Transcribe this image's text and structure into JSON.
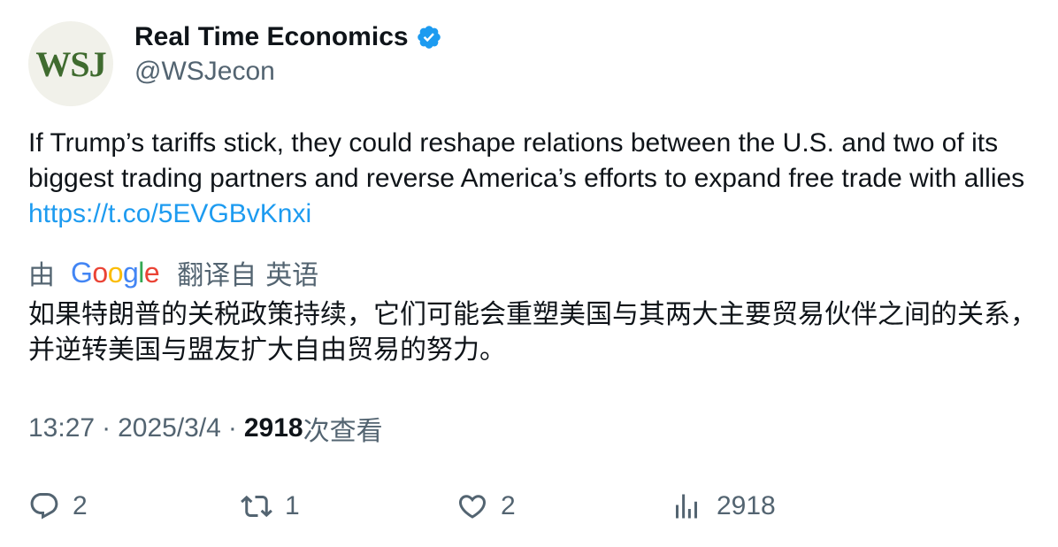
{
  "account": {
    "avatar_text": "WSJ",
    "name": "Real Time Economics",
    "handle": "@WSJecon"
  },
  "tweet": {
    "text": "If Trump’s tariffs stick, they could reshape relations between the U.S. and two of its biggest trading partners and reverse America’s efforts to expand free trade with allies ",
    "link": "https://t.co/5EVGBvKnxi"
  },
  "translation": {
    "by_label": "由",
    "google_letters": [
      "G",
      "o",
      "o",
      "g",
      "l",
      "e"
    ],
    "translated_from_label": "翻译自",
    "source_language": "英语",
    "text": "如果特朗普的关税政策持续，它们可能会重塑美国与其两大主要贸易伙伴之间的关系，并逆转美国与盟友扩大自由贸易的努力。"
  },
  "meta": {
    "time": "13:27",
    "date": "2025/3/4",
    "views_count": "2918",
    "views_label": "次查看"
  },
  "actions": {
    "replies": "2",
    "retweets": "1",
    "likes": "2",
    "views": "2918"
  },
  "colors": {
    "verified_badge": "#1d9bf0",
    "link": "#1d9bf0",
    "secondary_text": "#536471",
    "avatar_logo": "#3f6b2f"
  }
}
